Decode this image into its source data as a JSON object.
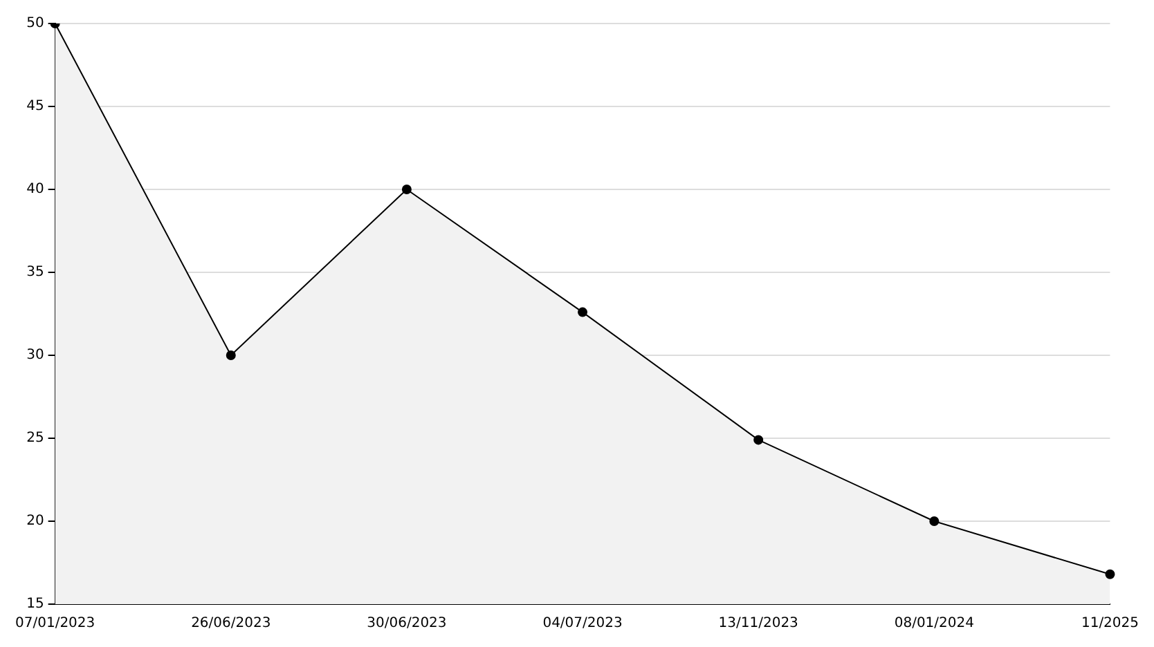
{
  "chart_data": {
    "type": "area",
    "categories": [
      "07/01/2023",
      "26/06/2023",
      "30/06/2023",
      "04/07/2023",
      "13/11/2023",
      "08/01/2024",
      "11/2025"
    ],
    "series": [
      {
        "color": "#000000",
        "values": [
          50,
          30,
          40,
          32.6,
          24.9,
          20,
          16.8
        ]
      }
    ],
    "ylim": [
      15,
      50
    ],
    "yticks": [
      15,
      20,
      25,
      30,
      35,
      40,
      45,
      50
    ],
    "grid": "y",
    "legend": false,
    "marker": "circle",
    "line_style": "solid"
  }
}
